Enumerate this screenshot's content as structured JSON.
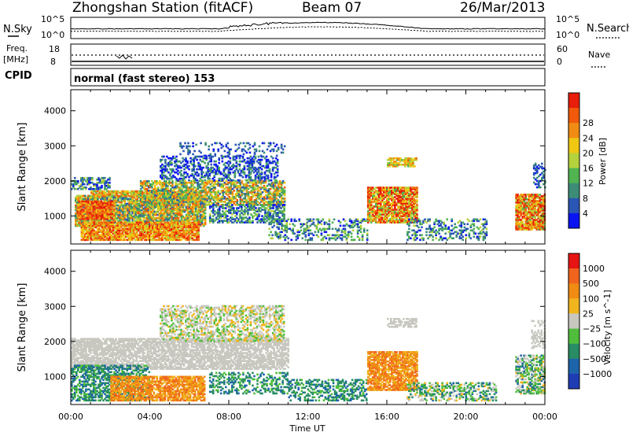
{
  "header": {
    "station": "Zhongshan Station (fitACF)",
    "beam": "Beam 07",
    "date": "26/Mar/2013"
  },
  "noise_panel": {
    "left_label": "N.Sky",
    "left_ticks": [
      "10^5",
      "10^0"
    ],
    "right_label": "N.Search",
    "right_ticks": [
      "10^5",
      "10^0"
    ]
  },
  "freq_panel": {
    "left_label_top": "Freq.",
    "left_label_bottom": "[MHz]",
    "left_ticks": [
      "18",
      "8"
    ],
    "right_label": "Nave",
    "right_ticks": [
      "60",
      "0"
    ]
  },
  "cpid_panel": {
    "label": "CPID",
    "mode_text": "normal (fast stereo) 153"
  },
  "chart_data": [
    {
      "type": "heatmap",
      "name": "power",
      "ylabel": "Slant Range [km]",
      "yticks": [
        "1000",
        "2000",
        "3000",
        "4000"
      ],
      "ylim": [
        200,
        4600
      ],
      "xlim": [
        0,
        24
      ],
      "colorbar_label": "Power [dB]",
      "colorbar_ticks": [
        "4",
        "8",
        "12",
        "16",
        "20",
        "24",
        "28"
      ],
      "colors": [
        "#0a14f0",
        "#2a56b4",
        "#3c8c78",
        "#50b450",
        "#b4d23c",
        "#f0c814",
        "#f08c14",
        "#f05a0a",
        "#e61e0a"
      ],
      "regions": [
        {
          "t0": 0.2,
          "t1": 6.8,
          "r0": 700,
          "r1": 1600,
          "dens": 0.85,
          "level": 4,
          "spread": 3
        },
        {
          "t0": 0.5,
          "t1": 6.5,
          "r0": 300,
          "r1": 800,
          "dens": 0.9,
          "level": 6,
          "spread": 2
        },
        {
          "t0": 0.3,
          "t1": 2.2,
          "r0": 900,
          "r1": 1400,
          "dens": 0.9,
          "level": 7,
          "spread": 2
        },
        {
          "t0": 1.0,
          "t1": 6.0,
          "r0": 1550,
          "r1": 1700,
          "dens": 0.8,
          "level": 5,
          "spread": 2
        },
        {
          "t0": 0.0,
          "t1": 2.0,
          "r0": 1750,
          "r1": 2100,
          "dens": 0.6,
          "level": 2,
          "spread": 2
        },
        {
          "t0": 3.5,
          "t1": 10.8,
          "r0": 1300,
          "r1": 2000,
          "dens": 0.7,
          "level": 4,
          "spread": 3
        },
        {
          "t0": 4.5,
          "t1": 10.5,
          "r0": 2000,
          "r1": 2700,
          "dens": 0.45,
          "level": 1,
          "spread": 2
        },
        {
          "t0": 5.5,
          "t1": 10.8,
          "r0": 2700,
          "r1": 3100,
          "dens": 0.2,
          "level": 1,
          "spread": 1
        },
        {
          "t0": 7.0,
          "t1": 10.8,
          "r0": 800,
          "r1": 1300,
          "dens": 0.55,
          "level": 2,
          "spread": 2
        },
        {
          "t0": 10.0,
          "t1": 15.0,
          "r0": 300,
          "r1": 900,
          "dens": 0.35,
          "level": 2,
          "spread": 2
        },
        {
          "t0": 15.0,
          "t1": 17.5,
          "r0": 800,
          "r1": 1800,
          "dens": 0.85,
          "level": 6,
          "spread": 3
        },
        {
          "t0": 16.0,
          "t1": 17.5,
          "r0": 2400,
          "r1": 2650,
          "dens": 0.7,
          "level": 5,
          "spread": 2
        },
        {
          "t0": 17.0,
          "t1": 21.0,
          "r0": 300,
          "r1": 900,
          "dens": 0.35,
          "level": 2,
          "spread": 2
        },
        {
          "t0": 22.5,
          "t1": 24.0,
          "r0": 600,
          "r1": 1600,
          "dens": 0.85,
          "level": 6,
          "spread": 3
        },
        {
          "t0": 23.4,
          "t1": 24.0,
          "r0": 1800,
          "r1": 2500,
          "dens": 0.4,
          "level": 1,
          "spread": 1
        }
      ]
    },
    {
      "type": "heatmap",
      "name": "velocity",
      "ylabel": "Slant Range [km]",
      "yticks": [
        "1000",
        "2000",
        "3000",
        "4000"
      ],
      "ylim": [
        200,
        4600
      ],
      "xlim": [
        0,
        24
      ],
      "colorbar_label": "Velocity [m s^-1]",
      "colorbar_ticks": [
        "1000",
        "500",
        "100",
        "25",
        "−25",
        "−100",
        "−500",
        "−1000"
      ],
      "colors": [
        "#1e3cb4",
        "#1e64aa",
        "#288c64",
        "#50be3c",
        "#c8c8c0",
        "#f0b41e",
        "#f08c14",
        "#f0641e",
        "#e61414"
      ],
      "regions": [
        {
          "t0": 0.0,
          "t1": 11.0,
          "r0": 1200,
          "r1": 2100,
          "dens": 0.75,
          "level": 4,
          "spread": 0
        },
        {
          "t0": 4.5,
          "t1": 10.8,
          "r0": 2000,
          "r1": 3000,
          "dens": 0.5,
          "level": 4,
          "spread": 1
        },
        {
          "t0": 0.0,
          "t1": 4.0,
          "r0": 300,
          "r1": 1300,
          "dens": 0.6,
          "level": 2,
          "spread": 1
        },
        {
          "t0": 2.0,
          "t1": 6.8,
          "r0": 300,
          "r1": 1000,
          "dens": 0.75,
          "level": 6,
          "spread": 1
        },
        {
          "t0": 7.0,
          "t1": 11.0,
          "r0": 500,
          "r1": 1100,
          "dens": 0.4,
          "level": 2,
          "spread": 1
        },
        {
          "t0": 11.0,
          "t1": 15.0,
          "r0": 300,
          "r1": 900,
          "dens": 0.45,
          "level": 2,
          "spread": 1
        },
        {
          "t0": 15.0,
          "t1": 17.5,
          "r0": 600,
          "r1": 1700,
          "dens": 0.8,
          "level": 6,
          "spread": 1
        },
        {
          "t0": 16.0,
          "t1": 17.5,
          "r0": 2400,
          "r1": 2650,
          "dens": 0.6,
          "level": 4,
          "spread": 0
        },
        {
          "t0": 17.0,
          "t1": 21.5,
          "r0": 300,
          "r1": 800,
          "dens": 0.45,
          "level": 3,
          "spread": 2
        },
        {
          "t0": 22.5,
          "t1": 24.0,
          "r0": 500,
          "r1": 1600,
          "dens": 0.6,
          "level": 3,
          "spread": 2
        },
        {
          "t0": 23.3,
          "t1": 24.0,
          "r0": 1800,
          "r1": 2600,
          "dens": 0.45,
          "level": 4,
          "spread": 0
        }
      ]
    }
  ],
  "x_axis": {
    "ticks": [
      "00:00",
      "04:00",
      "08:00",
      "12:00",
      "16:00",
      "20:00",
      "00:00"
    ],
    "label": "Time UT"
  }
}
